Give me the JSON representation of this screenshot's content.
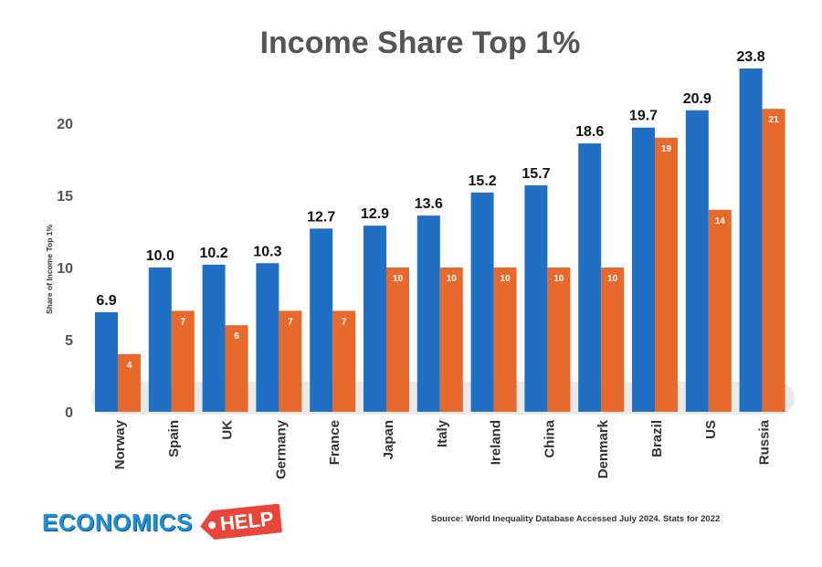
{
  "chart_data": {
    "type": "bar",
    "title": "Income Share Top 1%",
    "ylabel": "Share of Income Top 1%",
    "xlabel": "",
    "ylim": [
      0,
      25
    ],
    "yticks": [
      0,
      5,
      10,
      15,
      20
    ],
    "grid": false,
    "categories": [
      "Norway",
      "Spain",
      "UK",
      "Germany",
      "France",
      "Japan",
      "Italy",
      "Ireland",
      "China",
      "Denmark",
      "Brazil",
      "US",
      "Russia"
    ],
    "series": [
      {
        "color": "#1f6fc5",
        "values": [
          6.9,
          10.0,
          10.2,
          10.3,
          12.7,
          12.9,
          13.6,
          15.2,
          15.7,
          18.6,
          19.7,
          20.9,
          23.8
        ],
        "labels": [
          "6.9",
          "10.0",
          "10.2",
          "10.3",
          "12.7",
          "12.9",
          "13.6",
          "15.2",
          "15.7",
          "18.6",
          "19.7",
          "20.9",
          "23.8"
        ]
      },
      {
        "color": "#e8692c",
        "values": [
          4,
          7,
          6,
          7,
          7,
          10,
          10,
          10,
          10,
          10,
          19,
          14,
          21
        ],
        "labels": [
          "4",
          "7",
          "6",
          "7",
          "7",
          "10",
          "10",
          "10",
          "10",
          "10",
          "19",
          "14",
          "21"
        ]
      }
    ]
  },
  "source": "Source: World Inequality Database Accessed July 2024. Stats for 2022",
  "logo": {
    "word": "ECONOMICS",
    "tag": "HELP"
  }
}
